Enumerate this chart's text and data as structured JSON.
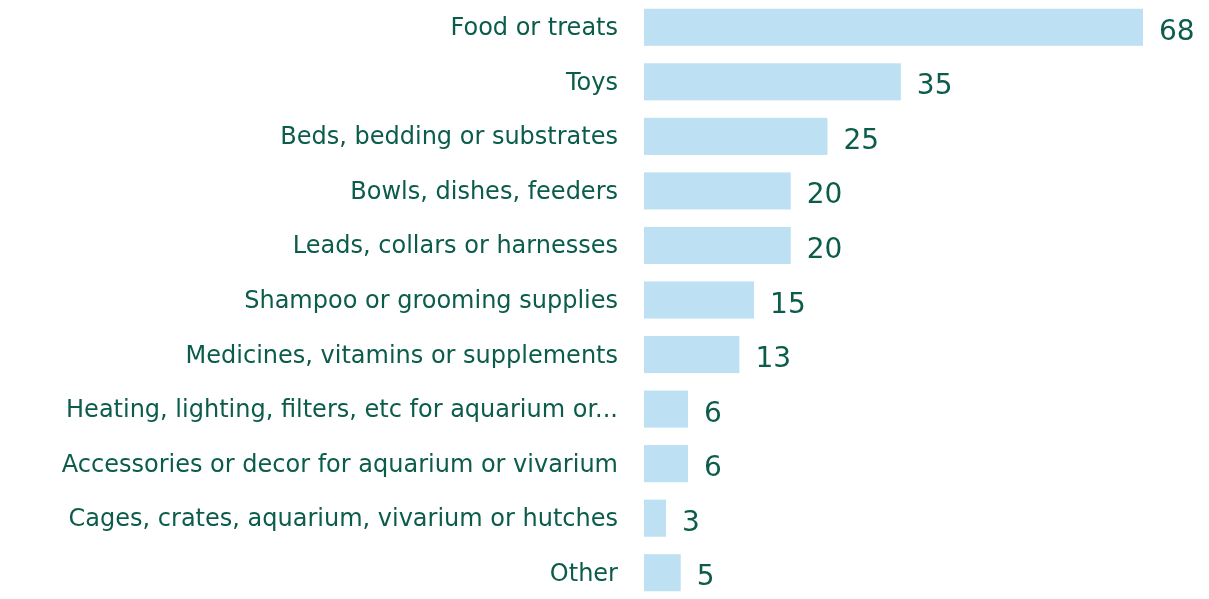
{
  "chart_data": {
    "type": "bar",
    "orientation": "horizontal",
    "categories": [
      "Food or treats",
      "Toys",
      "Beds, bedding or substrates",
      "Bowls, dishes, feeders",
      "Leads, collars or harnesses",
      "Shampoo or grooming supplies",
      "Medicines, vitamins or supplements",
      "Heating, lighting, filters, etc for aquarium or...",
      "Accessories or decor for aquarium or vivarium",
      "Cages, crates, aquarium, vivarium or hutches",
      "Other"
    ],
    "values": [
      68,
      35,
      25,
      20,
      20,
      15,
      13,
      6,
      6,
      3,
      5
    ],
    "color": "#bde0f2",
    "data_labels": true
  }
}
